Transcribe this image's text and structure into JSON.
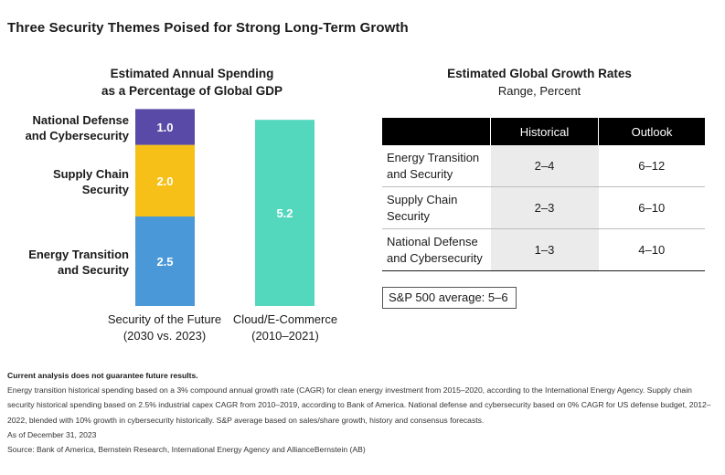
{
  "title": "Three Security Themes Poised for Strong Long-Term Growth",
  "chart_data": [
    {
      "type": "bar",
      "stacked": true,
      "title": "Estimated Annual Spending as a Percentage of Global GDP",
      "categories": [
        "Security of the Future (2030 vs. 2023)",
        "Cloud/E-Commerce (2010–2021)"
      ],
      "series": [
        {
          "name": "Energy Transition and Security",
          "values": [
            2.5,
            null
          ],
          "color": "#4a98d8"
        },
        {
          "name": "Supply Chain Security",
          "values": [
            2.0,
            null
          ],
          "color": "#f6c018"
        },
        {
          "name": "National Defense and Cybersecurity",
          "values": [
            1.0,
            null
          ],
          "color": "#5a4aa8"
        },
        {
          "name": "",
          "values": [
            null,
            5.2
          ],
          "color": "#53d8bd"
        }
      ],
      "ylim": [
        0,
        5.5
      ],
      "grid": false,
      "legend": "inline-left"
    },
    {
      "type": "table",
      "title": "Estimated Global Growth Rates",
      "subtitle": "Range, Percent",
      "columns": [
        "",
        "Historical",
        "Outlook"
      ],
      "rows": [
        {
          "theme_line1": "Energy Transition",
          "theme_line2": "and Security",
          "historical": "2–4",
          "outlook": "6–12"
        },
        {
          "theme_line1": "Supply Chain",
          "theme_line2": "Security",
          "historical": "2–3",
          "outlook": "6–10"
        },
        {
          "theme_line1": "National Defense",
          "theme_line2": "and Cybersecurity",
          "historical": "1–3",
          "outlook": "4–10"
        }
      ],
      "note": "S&P 500 average: 5–6"
    }
  ],
  "labels": {
    "left_title_line1": "Estimated Annual Spending",
    "left_title_line2": "as a Percentage of Global GDP",
    "seg_national_line1": "National Defense",
    "seg_national_line2": "and Cybersecurity",
    "seg_supply_line1": "Supply Chain",
    "seg_supply_line2": "Security",
    "seg_energy_line1": "Energy Transition",
    "seg_energy_line2": "and Security",
    "cat1_line1": "Security of the Future",
    "cat1_line2": "(2030 vs. 2023)",
    "cat2_line1": "Cloud/E-Commerce",
    "cat2_line2": "(2010–2021)"
  },
  "notes": {
    "disclaimer": "Current analysis does not guarantee future results.",
    "methodology": "Energy transition historical spending based on a 3% compound annual growth rate (CAGR) for clean energy investment from 2015–2020, according to the International Energy Agency. Supply chain security historical spending based on 2.5% industrial capex CAGR from 2010–2019, according to Bank of America. National defense and cybersecurity based on 0% CAGR for US defense budget, 2012–2022, blended with 10% growth in cybersecurity historically. S&P average based on sales/share growth, history and consensus forecasts.",
    "as_of": "As of December 31, 2023",
    "source": "Source: Bank of America, Bernstein Research, International Energy Agency and AllianceBernstein (AB)"
  }
}
